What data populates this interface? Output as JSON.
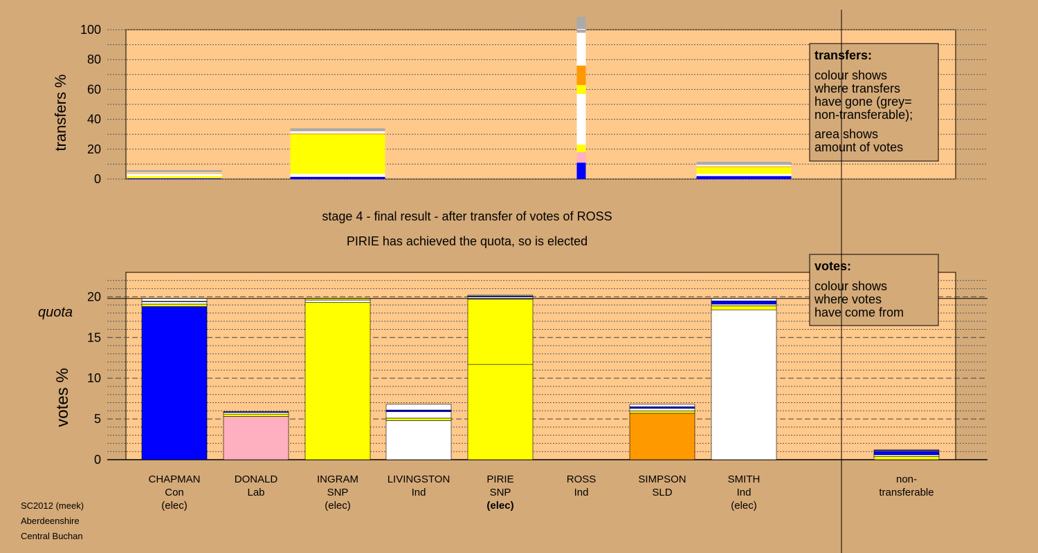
{
  "stage_title": "stage 4 - final result - after transfer of votes of ROSS",
  "stage_subtitle": "PIRIE has achieved the quota, so is elected",
  "footer": [
    "SC2012 (meek)",
    "Aberdeenshire",
    "Central Buchan"
  ],
  "quota_label": "quota",
  "transfers_legend": {
    "title": "transfers:",
    "lines": [
      "colour shows",
      "where transfers",
      "have gone (grey=",
      "non-transferable);"
    ],
    "lines2": [
      "area shows",
      "amount of votes"
    ]
  },
  "votes_legend": {
    "title": "votes:",
    "lines": [
      "colour shows",
      "where votes",
      "have come from"
    ]
  },
  "colors": {
    "background": "#d4aa78",
    "plot": "#ffc98c",
    "Con": "#0000ff",
    "Lab": "#ffb0c0",
    "SNP": "#ffff00",
    "Ind": "#ffffff",
    "SLD": "#ff9900",
    "nontransferable": "#aaaaaa"
  },
  "chart_data": [
    {
      "type": "bar",
      "name": "transfers",
      "ylabel": "transfers %",
      "ylim": [
        0,
        100
      ],
      "yticks": [
        0,
        20,
        40,
        60,
        80,
        100
      ],
      "categories": [
        "CHAPMAN",
        "DONALD",
        "INGRAM",
        "LIVINGSTON",
        "PIRIE",
        "ROSS",
        "SIMPSON",
        "SMITH"
      ],
      "bars": [
        {
          "candidate": "CHAPMAN",
          "segments": [
            {
              "color": "#0000ff",
              "value": 0.5
            },
            {
              "color": "#ffff00",
              "value": 1.5
            },
            {
              "color": "#ffffff",
              "value": 1.5
            },
            {
              "color": "#ff9900",
              "value": 0.5
            },
            {
              "color": "#ffffff",
              "value": 0.5
            },
            {
              "color": "#aaaaaa",
              "value": 1.5
            }
          ]
        },
        {
          "candidate": "INGRAM",
          "segments": [
            {
              "color": "#0000ff",
              "value": 1.5
            },
            {
              "color": "#ffffff",
              "value": 2.0
            },
            {
              "color": "#ffff00",
              "value": 26.5
            },
            {
              "color": "#ff9900",
              "value": 0.5
            },
            {
              "color": "#ffffff",
              "value": 1.5
            },
            {
              "color": "#aaaaaa",
              "value": 2.0
            }
          ]
        },
        {
          "candidate": "ROSS",
          "segments": [
            {
              "color": "#0000ff",
              "value": 11
            },
            {
              "color": "#ffb0c0",
              "value": 7
            },
            {
              "color": "#ffff00",
              "value": 5
            },
            {
              "color": "#ffffff",
              "value": 34
            },
            {
              "color": "#ffff00",
              "value": 6
            },
            {
              "color": "#ff9900",
              "value": 13
            },
            {
              "color": "#ffffff",
              "value": 22
            },
            {
              "color": "#aaaaaa",
              "value": 2
            },
            {
              "color": "#ffffff",
              "value": 0.5
            },
            {
              "color": "#aaaaaa",
              "value": 8
            }
          ]
        },
        {
          "candidate": "SMITH",
          "segments": [
            {
              "color": "#0000ff",
              "value": 2
            },
            {
              "color": "#ffffff",
              "value": 1.5
            },
            {
              "color": "#ffff00",
              "value": 4.5
            },
            {
              "color": "#ff9900",
              "value": 0.5
            },
            {
              "color": "#ffffff",
              "value": 1.0
            },
            {
              "color": "#aaaaaa",
              "value": 2.0
            }
          ]
        }
      ]
    },
    {
      "type": "bar",
      "name": "votes",
      "ylabel": "votes %",
      "ylim": [
        0,
        23
      ],
      "yticks": [
        0,
        5,
        10,
        15,
        20
      ],
      "quota": 19.8,
      "categories": [
        {
          "name": "CHAPMAN",
          "party": "Con",
          "status": "(elec)",
          "bold": false
        },
        {
          "name": "DONALD",
          "party": "Lab",
          "status": "",
          "bold": false
        },
        {
          "name": "INGRAM",
          "party": "SNP",
          "status": "(elec)",
          "bold": false
        },
        {
          "name": "LIVINGSTON",
          "party": "Ind",
          "status": "",
          "bold": false
        },
        {
          "name": "PIRIE",
          "party": "SNP",
          "status": "(elec)",
          "bold": true
        },
        {
          "name": "ROSS",
          "party": "Ind",
          "status": "",
          "bold": false
        },
        {
          "name": "SIMPSON",
          "party": "SLD",
          "status": "",
          "bold": false
        },
        {
          "name": "SMITH",
          "party": "Ind",
          "status": "(elec)",
          "bold": false
        },
        {
          "name": "non-",
          "party": "transferable",
          "status": "",
          "bold": false
        }
      ],
      "bars": [
        {
          "candidate": "CHAPMAN",
          "segments": [
            {
              "color": "#0000ff",
              "value": 18.8
            },
            {
              "color": "#ffff00",
              "value": 0.3
            },
            {
              "color": "#ffffff",
              "value": 0.3
            },
            {
              "color": "#ff9900",
              "value": 0.05
            },
            {
              "color": "#ffffff",
              "value": 0.35
            }
          ]
        },
        {
          "candidate": "DONALD",
          "segments": [
            {
              "color": "#ffb0c0",
              "value": 5.3
            },
            {
              "color": "#ffff00",
              "value": 0.3
            },
            {
              "color": "#ffffff",
              "value": 0.2
            },
            {
              "color": "#0000ff",
              "value": 0.1
            }
          ]
        },
        {
          "candidate": "INGRAM",
          "segments": [
            {
              "color": "#ffff00",
              "value": 19.3
            },
            {
              "color": "#ffffff",
              "value": 0.3
            },
            {
              "color": "#ffff00",
              "value": 0.2
            }
          ]
        },
        {
          "candidate": "LIVINGSTON",
          "segments": [
            {
              "color": "#ffffff",
              "value": 4.8
            },
            {
              "color": "#ffff00",
              "value": 0.3
            },
            {
              "color": "#ffffff",
              "value": 0.8
            },
            {
              "color": "#0000ff",
              "value": 0.2
            },
            {
              "color": "#ffffff",
              "value": 0.7
            }
          ]
        },
        {
          "candidate": "PIRIE",
          "segments": [
            {
              "color": "#ffff00",
              "value": 11.7
            },
            {
              "color": "#ffff00",
              "value": 8.0
            },
            {
              "color": "#ffffff",
              "value": 0.3
            },
            {
              "color": "#0000ff",
              "value": 0.1
            },
            {
              "color": "#ffffff",
              "value": 0.1
            }
          ]
        },
        {
          "candidate": "SIMPSON",
          "segments": [
            {
              "color": "#ff9900",
              "value": 5.7
            },
            {
              "color": "#ffff00",
              "value": 0.3
            },
            {
              "color": "#ffffff",
              "value": 0.3
            },
            {
              "color": "#0000ff",
              "value": 0.2
            },
            {
              "color": "#ffffff",
              "value": 0.3
            }
          ]
        },
        {
          "candidate": "SMITH",
          "segments": [
            {
              "color": "#ffffff",
              "value": 18.4
            },
            {
              "color": "#ffff00",
              "value": 0.5
            },
            {
              "color": "#ffffff",
              "value": 0.2
            },
            {
              "color": "#0000ff",
              "value": 0.4
            },
            {
              "color": "#ffffff",
              "value": 0.3
            }
          ]
        },
        {
          "candidate": "non-transferable",
          "segments": [
            {
              "color": "#ffff00",
              "value": 0.4
            },
            {
              "color": "#ffffff",
              "value": 0.2
            },
            {
              "color": "#0000ff",
              "value": 0.4
            },
            {
              "color": "#ffffff",
              "value": 0.1
            },
            {
              "color": "#0000ff",
              "value": 0.1
            }
          ]
        }
      ]
    }
  ]
}
